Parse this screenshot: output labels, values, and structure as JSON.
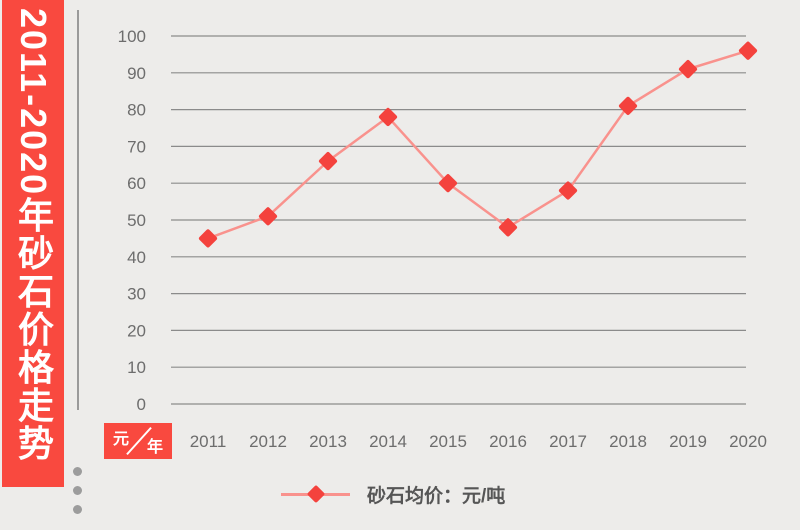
{
  "banner": {
    "title": "2011-2020年砂石价格走势"
  },
  "unit_box": {
    "numerator": "元",
    "denominator": "年"
  },
  "legend": {
    "label": "砂石均价：元/吨"
  },
  "chart_data": {
    "type": "line",
    "title": "2011-2020年砂石价格走势",
    "x": [
      "2011",
      "2012",
      "2013",
      "2014",
      "2015",
      "2016",
      "2017",
      "2018",
      "2019",
      "2020"
    ],
    "series": [
      {
        "name": "砂石均价",
        "unit": "元/吨",
        "marker": "diamond",
        "values": [
          45,
          51,
          66,
          78,
          60,
          48,
          58,
          81,
          91,
          96
        ]
      }
    ],
    "xlabel": "年",
    "ylabel": "元",
    "ylim": [
      0,
      100
    ],
    "yticks": [
      0,
      10,
      20,
      30,
      40,
      50,
      60,
      70,
      80,
      90,
      100
    ],
    "grid": true,
    "legend_position": "bottom"
  },
  "colors": {
    "accent_red": "#f9493f",
    "marker_red": "#f4423d",
    "line_pink": "#f9928d",
    "grid_gray": "#8b8b8b",
    "axis_text": "#6d6d6d",
    "legend_text": "#565656",
    "background": "#edecea"
  }
}
